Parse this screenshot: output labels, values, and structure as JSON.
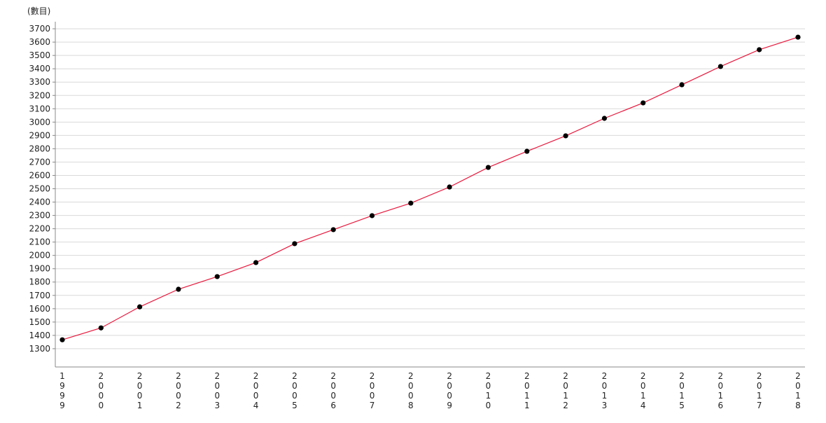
{
  "chart_data": {
    "type": "line",
    "title": "",
    "ylabel": "(數目)",
    "xlabel": "",
    "x": [
      "1999",
      "2000",
      "2001",
      "2002",
      "2003",
      "2004",
      "2005",
      "2006",
      "2007",
      "2008",
      "2009",
      "2010",
      "2011",
      "2012",
      "2013",
      "2014",
      "2015",
      "2016",
      "2017",
      "2018"
    ],
    "series": [
      {
        "values": [
          1367,
          1456,
          1614,
          1746,
          1841,
          1946,
          2088,
          2193,
          2298,
          2392,
          2513,
          2660,
          2781,
          2897,
          3028,
          3144,
          3280,
          3417,
          3543,
          3637
        ]
      }
    ],
    "yticks": [
      1300,
      1400,
      1500,
      1600,
      1700,
      1800,
      1900,
      2000,
      2100,
      2200,
      2300,
      2400,
      2500,
      2600,
      2700,
      2800,
      2900,
      3000,
      3100,
      3200,
      3300,
      3400,
      3500,
      3600,
      3700
    ],
    "ylim": [
      1163,
      3753
    ],
    "grid": true,
    "legend": "none",
    "colors": {
      "line": "#e8173c",
      "marker": "#000000",
      "grid": "#d9d9d9",
      "axis": "#888888"
    }
  }
}
